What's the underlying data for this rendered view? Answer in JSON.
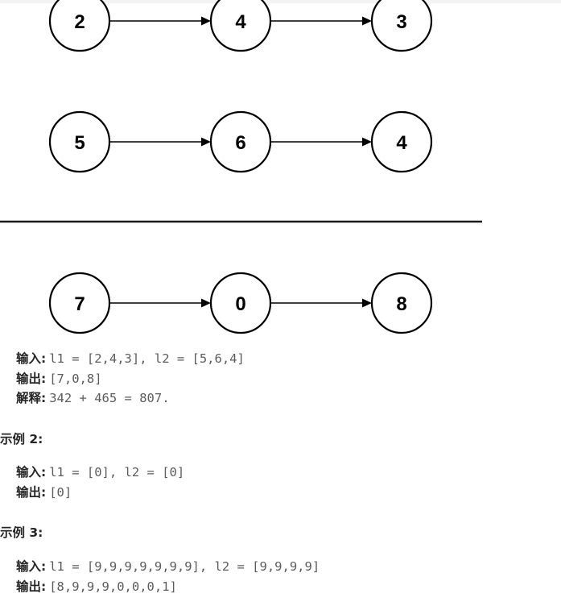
{
  "diagram": {
    "rows": [
      [
        "2",
        "4",
        "3"
      ],
      [
        "5",
        "6",
        "4"
      ],
      [
        "7",
        "0",
        "8"
      ]
    ]
  },
  "example1": {
    "input_label": "输入",
    "input_value": "l1 = [2,4,3], l2 = [5,6,4]",
    "output_label": "输出",
    "output_value": "[7,0,8]",
    "explain_label": "解释",
    "explain_value": "342 + 465 = 807."
  },
  "example2": {
    "heading": "示例 2:",
    "input_label": "输入",
    "input_value": "l1 = [0], l2 = [0]",
    "output_label": "输出",
    "output_value": "[0]"
  },
  "example3": {
    "heading": "示例 3:",
    "input_label": "输入",
    "input_value": "l1 = [9,9,9,9,9,9,9], l2 = [9,9,9,9]",
    "output_label": "输出",
    "output_value": "[8,9,9,9,0,0,0,1]"
  }
}
